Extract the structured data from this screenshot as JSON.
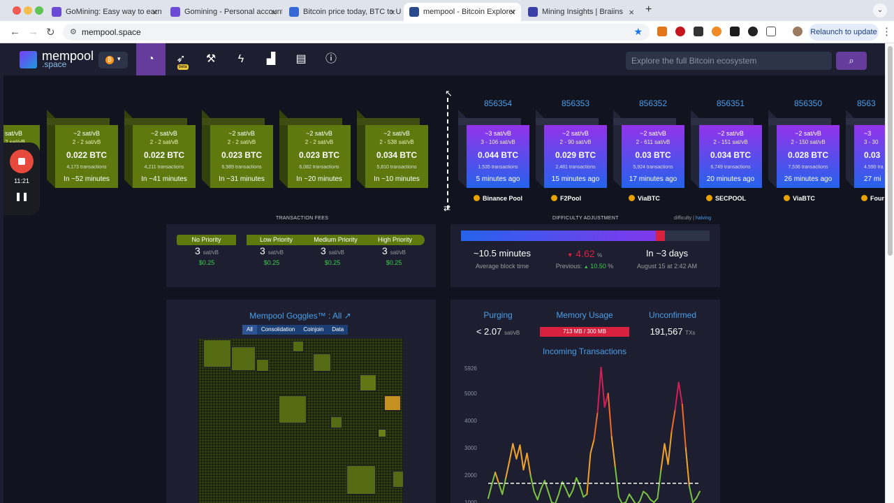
{
  "browser": {
    "tabs": [
      {
        "title": "GoMining: Easy way to earn e",
        "color": "#6c4cd6"
      },
      {
        "title": "Gomining - Personal account",
        "color": "#6c4cd6"
      },
      {
        "title": "Bitcoin price today, BTC to US",
        "color": "#3567d6"
      },
      {
        "title": "mempool - Bitcoin Explorer",
        "color": "#2b4a8c"
      },
      {
        "title": "Mining Insights | Braiins",
        "color": "#3a3fa6"
      }
    ],
    "url": "mempool.space",
    "relaunch_label": "Relaunch to update",
    "new_tab": "+",
    "close_glyph": "×"
  },
  "header": {
    "logo_top": "mempool",
    "logo_bottom": ".space",
    "beta": "beta",
    "search_placeholder": "Explore the full Bitcoin ecosystem",
    "nav_icons": [
      "dashboard-icon",
      "rocket-icon",
      "hammer-icon",
      "lightning-icon",
      "graphs-icon",
      "docs-icon",
      "info-icon"
    ]
  },
  "recorder": {
    "time": "11:21"
  },
  "pending_blocks": [
    {
      "fee": "~2 sat/vB",
      "range": "2 - 2 sat/vB",
      "size": "0.022 BTC",
      "tx": "4,173 transactions",
      "time": "In ~52 minutes"
    },
    {
      "fee": "~2 sat/vB",
      "range": "2 - 2 sat/vB",
      "size": "0.022 BTC",
      "tx": "4,211 transactions",
      "time": "In ~41 minutes"
    },
    {
      "fee": "~2 sat/vB",
      "range": "2 - 2 sat/vB",
      "size": "0.023 BTC",
      "tx": "6,989 transactions",
      "time": "In ~31 minutes"
    },
    {
      "fee": "~2 sat/vB",
      "range": "2 - 2 sat/vB",
      "size": "0.023 BTC",
      "tx": "6,082 transactions",
      "time": "In ~20 minutes"
    },
    {
      "fee": "~2 sat/vB",
      "range": "2 - 538 sat/vB",
      "size": "0.034 BTC",
      "tx": "5,810 transactions",
      "time": "In ~10 minutes"
    }
  ],
  "partial_left_block": {
    "fee": "sat/vB",
    "range": "2 sat/vB"
  },
  "mined_blocks": [
    {
      "height": "856354",
      "fee": "~3 sat/vB",
      "range": "3 - 106 sat/vB",
      "size": "0.044 BTC",
      "tx": "1,535 transactions",
      "time": "5 minutes ago",
      "pool": "Binance Pool"
    },
    {
      "height": "856353",
      "fee": "~2 sat/vB",
      "range": "2 - 90 sat/vB",
      "size": "0.029 BTC",
      "tx": "2,481 transactions",
      "time": "15 minutes ago",
      "pool": "F2Pool"
    },
    {
      "height": "856352",
      "fee": "~2 sat/vB",
      "range": "2 - 611 sat/vB",
      "size": "0.03 BTC",
      "tx": "5,924 transactions",
      "time": "17 minutes ago",
      "pool": "ViaBTC"
    },
    {
      "height": "856351",
      "fee": "~2 sat/vB",
      "range": "2 - 151 sat/vB",
      "size": "0.034 BTC",
      "tx": "6,749 transactions",
      "time": "20 minutes ago",
      "pool": "SECPOOL"
    },
    {
      "height": "856350",
      "fee": "~2 sat/vB",
      "range": "2 - 150 sat/vB",
      "size": "0.028 BTC",
      "tx": "7,536 transactions",
      "time": "26 minutes ago",
      "pool": "ViaBTC"
    }
  ],
  "partial_right_block": {
    "height": "8563",
    "fee": "~3",
    "range": "3 - 30",
    "size": "0.03",
    "tx": "4,590 tra",
    "time": "27 mi",
    "pool": "Four"
  },
  "fees": {
    "title": "TRANSACTION FEES",
    "labels": [
      "No Priority",
      "Low Priority",
      "Medium Priority",
      "High Priority"
    ],
    "values": [
      "3",
      "3",
      "3",
      "3"
    ],
    "unit": "sat/vB",
    "usd": [
      "$0.25",
      "$0.25",
      "$0.25",
      "$0.25"
    ]
  },
  "difficulty": {
    "title": "DIFFICULTY ADJUSTMENT",
    "toggle_a": "difficulty",
    "toggle_sep": "|",
    "toggle_b": "halving",
    "progress": 0.82,
    "block_time": "~10.5 minutes",
    "block_time_label": "Average block time",
    "change_arrow": "▼",
    "change": "4.62",
    "change_unit": "%",
    "previous_label": "Previous:",
    "previous_arrow": "▲",
    "previous": "10.50",
    "previous_unit": "%",
    "eta": "In ~3 days",
    "eta_date": "August 15 at 2:42 AM"
  },
  "goggles": {
    "title": "Mempool Goggles™ : All",
    "tabs": [
      "All",
      "Consolidation",
      "Coinjoin",
      "Data"
    ]
  },
  "mempool_stats": {
    "purging_label": "Purging",
    "purging_value": "< 2.07",
    "purging_unit": "sat/vB",
    "memory_label": "Memory Usage",
    "memory_value": "713 MB / 300 MB",
    "unconfirmed_label": "Unconfirmed",
    "unconfirmed_value": "191,567",
    "unconfirmed_unit": "TXs",
    "incoming_title": "Incoming Transactions"
  },
  "chart_data": {
    "type": "line",
    "title": "Incoming Transactions",
    "y_ticks": [
      1000,
      2000,
      3000,
      4000,
      5000,
      5926
    ],
    "ylim": [
      900,
      5926
    ],
    "reference_line": 1700,
    "series": [
      {
        "values": [
          1150,
          1650,
          2100,
          1700,
          1300,
          1900,
          2500,
          3150,
          2600,
          3100,
          2200,
          2800,
          2000,
          1400,
          1100,
          1500,
          1800,
          1400,
          1000,
          950,
          1300,
          1750,
          1500,
          1200,
          1450,
          1900,
          1600,
          1200,
          1300,
          2800,
          3300,
          4300,
          5950,
          4500,
          5000,
          3400,
          2300,
          1200,
          950,
          1000,
          1300,
          1100,
          900,
          1050,
          1400,
          1300,
          1100,
          1000,
          1150,
          2200,
          3150,
          2400,
          3600,
          4400,
          5400,
          4600,
          3000,
          1600,
          1000,
          1150,
          1400
        ]
      }
    ],
    "xlabel": "",
    "ylabel": ""
  }
}
